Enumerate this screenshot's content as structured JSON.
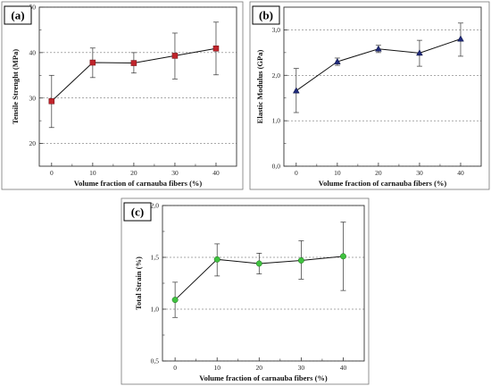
{
  "chart_data": [
    {
      "type": "line",
      "panel_label": "(a)",
      "xlabel": "Volume fraction of carnauba fibers (%)",
      "ylabel": "Tensile Strenght (MPa)",
      "x": [
        0,
        10,
        20,
        30,
        40
      ],
      "xticks": [
        "0",
        "10",
        "20",
        "30",
        "40"
      ],
      "xlim": [
        -3,
        45
      ],
      "values": [
        29.3,
        37.8,
        37.7,
        39.3,
        40.9
      ],
      "err_high": [
        35.0,
        41.0,
        40.0,
        44.3,
        46.7
      ],
      "err_low": [
        23.5,
        34.5,
        35.5,
        34.2,
        35.1
      ],
      "ylim": [
        15,
        50
      ],
      "yticks": [
        20,
        30,
        40,
        50
      ],
      "ytick_labels": [
        "20",
        "30",
        "40",
        "50"
      ],
      "grid": "dashed-horizontal",
      "marker": "square",
      "marker_color": "#c0242b"
    },
    {
      "type": "line",
      "panel_label": "(b)",
      "xlabel": "Volume fraction of carnauba fibers (%)",
      "ylabel": "Elastic Modulus (GPa)",
      "x": [
        0,
        10,
        20,
        30,
        40
      ],
      "xticks": [
        "0",
        "10",
        "20",
        "30",
        "40"
      ],
      "xlim": [
        -3,
        45
      ],
      "values": [
        1.66,
        2.3,
        2.58,
        2.49,
        2.8
      ],
      "err_high": [
        2.15,
        2.38,
        2.66,
        2.77,
        3.15
      ],
      "err_low": [
        1.18,
        2.22,
        2.5,
        2.2,
        2.42
      ],
      "ylim": [
        0,
        3.5
      ],
      "yticks": [
        0,
        1,
        2,
        3
      ],
      "ytick_labels": [
        "0,0",
        "1,0",
        "2,0",
        "3,0"
      ],
      "grid": "dashed-horizontal",
      "marker": "triangle",
      "marker_color": "#1f2a7a"
    },
    {
      "type": "line",
      "panel_label": "(c)",
      "xlabel": "Volume fraction of carnauba fibers (%)",
      "ylabel": "Total Strain (%)",
      "x": [
        0,
        10,
        20,
        30,
        40
      ],
      "xticks": [
        "0",
        "10",
        "20",
        "30",
        "40"
      ],
      "xlim": [
        -3,
        45
      ],
      "values": [
        1.09,
        1.48,
        1.44,
        1.47,
        1.51
      ],
      "err_high": [
        1.26,
        1.63,
        1.54,
        1.66,
        1.84
      ],
      "err_low": [
        0.92,
        1.32,
        1.34,
        1.29,
        1.18
      ],
      "ylim": [
        0.5,
        2.0
      ],
      "yticks": [
        0.5,
        1.0,
        1.5,
        2.0
      ],
      "ytick_labels": [
        "0,5",
        "1,0",
        "1,5",
        "2,0"
      ],
      "grid": "dashed-horizontal",
      "marker": "circle",
      "marker_color": "#3fc23f"
    }
  ]
}
